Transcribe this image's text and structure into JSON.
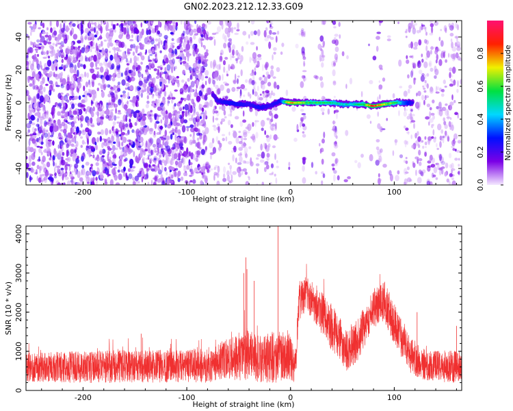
{
  "figure": {
    "title": "GN02.2023.212.12.33.G09"
  },
  "chart_data": [
    {
      "type": "heatmap",
      "xlabel": "Height of straight line (km)",
      "ylabel": "Frequency (Hz)",
      "xlim": [
        -255,
        165
      ],
      "ylim": [
        -50,
        50
      ],
      "x_ticks": [
        -200,
        -100,
        0,
        100
      ],
      "x_tick_labels": [
        "-200",
        "-100",
        "0",
        "100"
      ],
      "y_ticks": [
        -40,
        -20,
        0,
        20,
        40
      ],
      "y_tick_labels": [
        "-40",
        "-20",
        "0",
        "20",
        "40"
      ],
      "grid": false,
      "colorbar": {
        "label": "Normalized spectral amplitude",
        "range": [
          0,
          1
        ],
        "ticks": [
          0.0,
          0.2,
          0.4,
          0.6,
          0.8
        ],
        "tick_labels": [
          "0.0",
          "0.2",
          "0.4",
          "0.6",
          "0.8"
        ],
        "colormap": [
          "#f4e8ff",
          "#7b00e6",
          "#0010ff",
          "#00d8ff",
          "#00e040",
          "#f0f000",
          "#ff2000",
          "#ff1070"
        ]
      },
      "background_noise_regions": [
        {
          "x_range": [
            -255,
            -80
          ],
          "density": "high"
        },
        {
          "x_range": [
            -80,
            -12
          ],
          "density": "medium"
        },
        {
          "x_range": [
            -12,
            110
          ],
          "density": "low"
        },
        {
          "x_range": [
            110,
            165
          ],
          "density": "medium"
        }
      ],
      "signal_trace": [
        {
          "x": -75,
          "y": 5,
          "amplitude": 0.25
        },
        {
          "x": -70,
          "y": 1,
          "amplitude": 0.3
        },
        {
          "x": -60,
          "y": 0,
          "amplitude": 0.35
        },
        {
          "x": -50,
          "y": -1,
          "amplitude": 0.35
        },
        {
          "x": -40,
          "y": -1,
          "amplitude": 0.3
        },
        {
          "x": -30,
          "y": -3,
          "amplitude": 0.35
        },
        {
          "x": -20,
          "y": -2,
          "amplitude": 0.3
        },
        {
          "x": -10,
          "y": 1,
          "amplitude": 0.35
        },
        {
          "x": 0,
          "y": 0,
          "amplitude": 0.85
        },
        {
          "x": 10,
          "y": 0,
          "amplitude": 0.7
        },
        {
          "x": 20,
          "y": 0,
          "amplitude": 0.6
        },
        {
          "x": 30,
          "y": 0,
          "amplitude": 0.6
        },
        {
          "x": 40,
          "y": 0,
          "amplitude": 0.55
        },
        {
          "x": 50,
          "y": -1,
          "amplitude": 0.5
        },
        {
          "x": 60,
          "y": -1,
          "amplitude": 0.5
        },
        {
          "x": 70,
          "y": -1,
          "amplitude": 0.6
        },
        {
          "x": 80,
          "y": -2,
          "amplitude": 0.9
        },
        {
          "x": 90,
          "y": -1,
          "amplitude": 0.7
        },
        {
          "x": 100,
          "y": 0,
          "amplitude": 0.6
        },
        {
          "x": 110,
          "y": 0,
          "amplitude": 0.45
        },
        {
          "x": 118,
          "y": 0,
          "amplitude": 0.3
        }
      ]
    },
    {
      "type": "line",
      "xlabel": "Height of straight line (km)",
      "ylabel": "SNR (10 * v/v)",
      "xlim": [
        -255,
        165
      ],
      "ylim": [
        0,
        4200
      ],
      "x_ticks": [
        -200,
        -100,
        0,
        100
      ],
      "x_tick_labels": [
        "-200",
        "-100",
        "0",
        "100"
      ],
      "y_ticks": [
        0,
        1000,
        2000,
        3000,
        4000
      ],
      "y_tick_labels": [
        "0",
        "1000",
        "2000",
        "3000",
        "4000"
      ],
      "grid": false,
      "series": [
        {
          "color": "#f03030",
          "envelope": [
            {
              "x": -255,
              "mean": 600,
              "spread": 500
            },
            {
              "x": -200,
              "mean": 600,
              "spread": 550
            },
            {
              "x": -150,
              "mean": 620,
              "spread": 560
            },
            {
              "x": -100,
              "mean": 620,
              "spread": 560
            },
            {
              "x": -80,
              "mean": 650,
              "spread": 600
            },
            {
              "x": -60,
              "mean": 800,
              "spread": 700
            },
            {
              "x": -45,
              "mean": 900,
              "spread": 900
            },
            {
              "x": -30,
              "mean": 800,
              "spread": 800
            },
            {
              "x": -15,
              "mean": 850,
              "spread": 900
            },
            {
              "x": -5,
              "mean": 900,
              "spread": 800
            },
            {
              "x": 5,
              "mean": 700,
              "spread": 700
            },
            {
              "x": 8,
              "mean": 2300,
              "spread": 700
            },
            {
              "x": 15,
              "mean": 2500,
              "spread": 600
            },
            {
              "x": 25,
              "mean": 2200,
              "spread": 700
            },
            {
              "x": 40,
              "mean": 1600,
              "spread": 800
            },
            {
              "x": 55,
              "mean": 1000,
              "spread": 700
            },
            {
              "x": 65,
              "mean": 1300,
              "spread": 700
            },
            {
              "x": 80,
              "mean": 2100,
              "spread": 700
            },
            {
              "x": 90,
              "mean": 2300,
              "spread": 700
            },
            {
              "x": 100,
              "mean": 1700,
              "spread": 700
            },
            {
              "x": 115,
              "mean": 900,
              "spread": 600
            },
            {
              "x": 130,
              "mean": 650,
              "spread": 550
            },
            {
              "x": 165,
              "mean": 600,
              "spread": 550
            }
          ],
          "spikes": [
            {
              "x": -43,
              "y": 3400
            },
            {
              "x": -42,
              "y": 3100
            },
            {
              "x": -45,
              "y": 3000
            },
            {
              "x": -35,
              "y": 2800
            },
            {
              "x": -12,
              "y": 4200
            },
            {
              "x": -144,
              "y": 1450
            },
            {
              "x": 122,
              "y": 2000
            },
            {
              "x": 160,
              "y": 1650
            }
          ]
        }
      ]
    }
  ]
}
